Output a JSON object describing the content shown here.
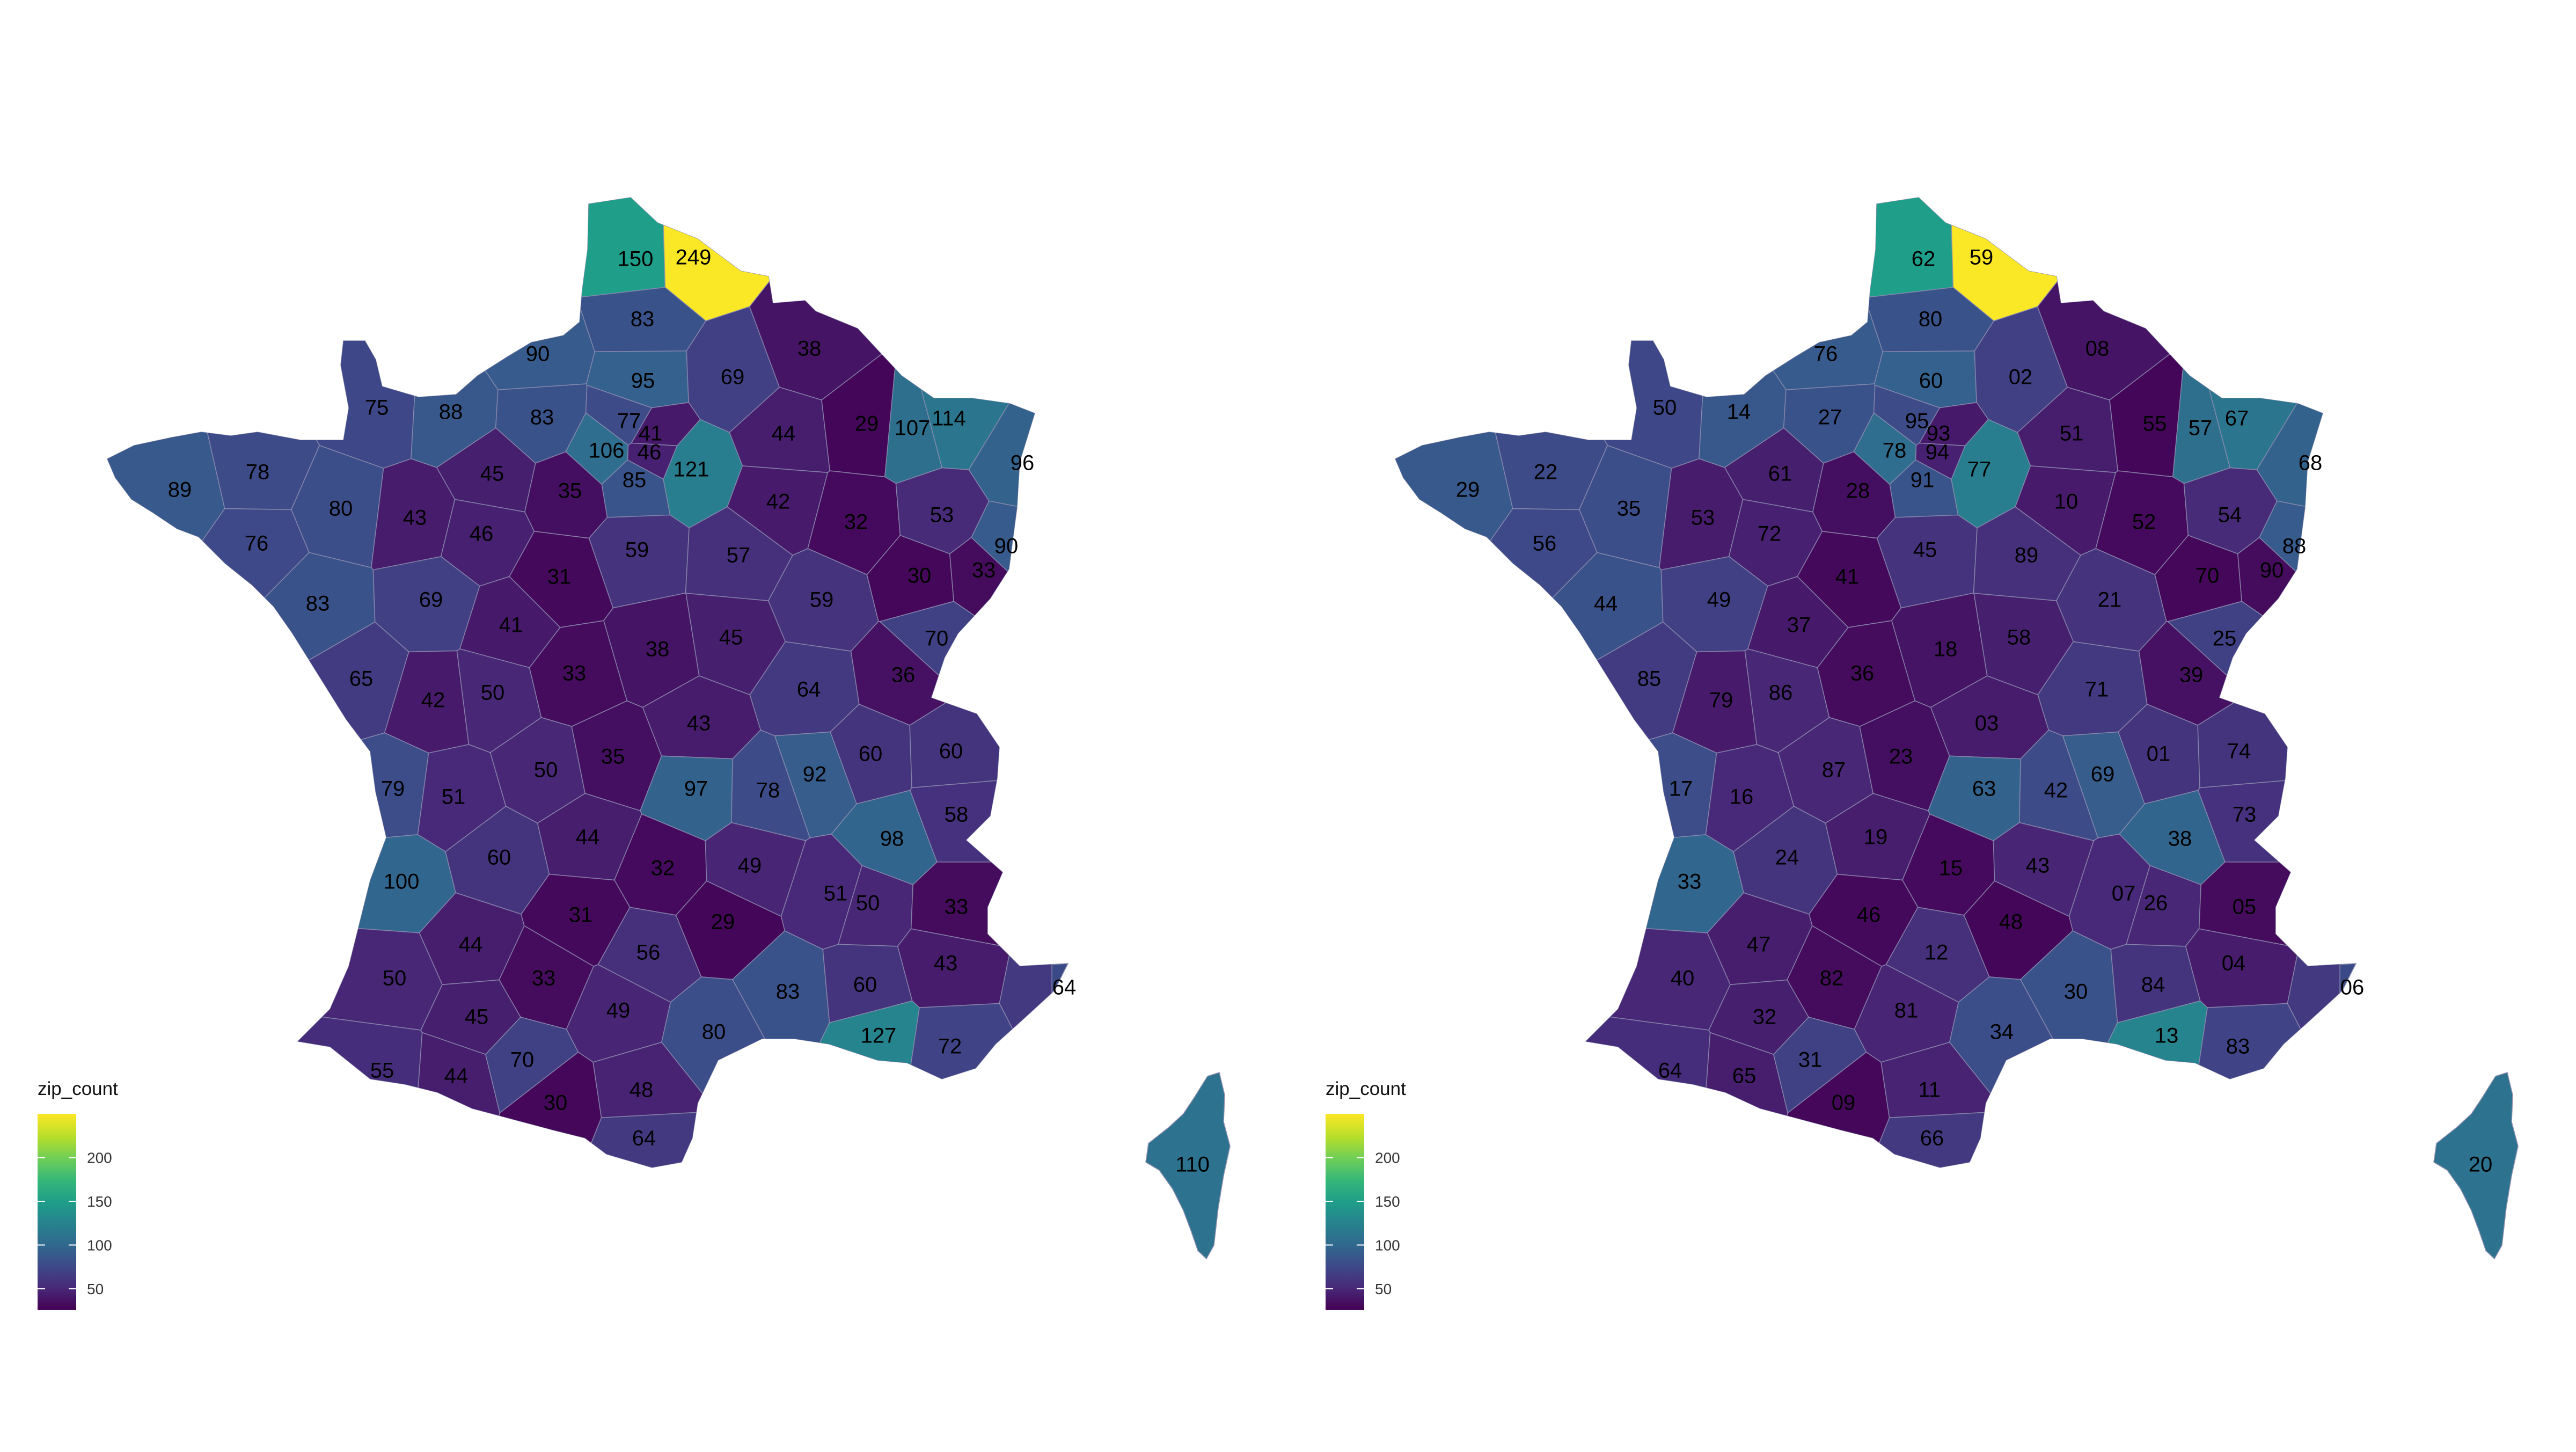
{
  "palette": [
    "#440154",
    "#482878",
    "#3e4989",
    "#31688e",
    "#26828e",
    "#1f9e89",
    "#35b779",
    "#6ece58",
    "#b5de2b",
    "#fde725"
  ],
  "region_stroke": "#8f8fb0",
  "legend": {
    "title": "zip_count",
    "ticks": [
      50,
      100,
      150,
      200
    ],
    "tick_labels": [
      "50",
      "100",
      "150",
      "200"
    ],
    "range": [
      26,
      250
    ]
  },
  "maps": [
    {
      "regions": [
        {
          "code": "62",
          "label": "150",
          "value": 150
        },
        {
          "code": "59",
          "label": "249",
          "value": 249
        },
        {
          "code": "80",
          "label": "83",
          "value": 83
        },
        {
          "code": "76",
          "label": "90",
          "value": 90
        },
        {
          "code": "60",
          "label": "95",
          "value": 95
        },
        {
          "code": "02",
          "label": "69",
          "value": 69
        },
        {
          "code": "08",
          "label": "38",
          "value": 38
        },
        {
          "code": "50",
          "label": "75",
          "value": 75
        },
        {
          "code": "14",
          "label": "88",
          "value": 88
        },
        {
          "code": "27",
          "label": "83",
          "value": 83
        },
        {
          "code": "95",
          "label": "77",
          "value": 77
        },
        {
          "code": "78",
          "label": "106",
          "value": 106
        },
        {
          "code": "91",
          "label": "85",
          "value": 85
        },
        {
          "code": "77",
          "label": "121",
          "value": 121
        },
        {
          "code": "93",
          "label": "41",
          "value": 41
        },
        {
          "code": "94",
          "label": "46",
          "value": 46
        },
        {
          "code": "51",
          "label": "44",
          "value": 44
        },
        {
          "code": "55",
          "label": "29",
          "value": 29
        },
        {
          "code": "57",
          "label": "107",
          "value": 107
        },
        {
          "code": "67",
          "label": "114",
          "value": 114
        },
        {
          "code": "68",
          "label": "96",
          "value": 96
        },
        {
          "code": "29",
          "label": "89",
          "value": 89
        },
        {
          "code": "22",
          "label": "78",
          "value": 78
        },
        {
          "code": "35",
          "label": "80",
          "value": 80
        },
        {
          "code": "56",
          "label": "76",
          "value": 76
        },
        {
          "code": "61",
          "label": "45",
          "value": 45
        },
        {
          "code": "53",
          "label": "43",
          "value": 43
        },
        {
          "code": "72",
          "label": "46",
          "value": 46
        },
        {
          "code": "28",
          "label": "35",
          "value": 35
        },
        {
          "code": "10",
          "label": "42",
          "value": 42
        },
        {
          "code": "52",
          "label": "32",
          "value": 32
        },
        {
          "code": "54",
          "label": "53",
          "value": 53
        },
        {
          "code": "88",
          "label": "90",
          "value": 90
        },
        {
          "code": "45",
          "label": "59",
          "value": 59
        },
        {
          "code": "89",
          "label": "57",
          "value": 57
        },
        {
          "code": "44",
          "label": "83",
          "value": 83
        },
        {
          "code": "49",
          "label": "69",
          "value": 69
        },
        {
          "code": "41",
          "label": "31",
          "value": 31
        },
        {
          "code": "21",
          "label": "59",
          "value": 59
        },
        {
          "code": "70",
          "label": "30",
          "value": 30
        },
        {
          "code": "90",
          "label": "33",
          "value": 33
        },
        {
          "code": "37",
          "label": "41",
          "value": 41
        },
        {
          "code": "18",
          "label": "38",
          "value": 38
        },
        {
          "code": "58",
          "label": "45",
          "value": 45
        },
        {
          "code": "25",
          "label": "70",
          "value": 70
        },
        {
          "code": "85",
          "label": "65",
          "value": 65
        },
        {
          "code": "79",
          "label": "42",
          "value": 42
        },
        {
          "code": "86",
          "label": "50",
          "value": 50
        },
        {
          "code": "36",
          "label": "33",
          "value": 33
        },
        {
          "code": "71",
          "label": "64",
          "value": 64
        },
        {
          "code": "39",
          "label": "36",
          "value": 36
        },
        {
          "code": "03",
          "label": "43",
          "value": 43
        },
        {
          "code": "17",
          "label": "79",
          "value": 79
        },
        {
          "code": "16",
          "label": "51",
          "value": 51
        },
        {
          "code": "87",
          "label": "50",
          "value": 50
        },
        {
          "code": "23",
          "label": "35",
          "value": 35
        },
        {
          "code": "63",
          "label": "97",
          "value": 97
        },
        {
          "code": "42",
          "label": "78",
          "value": 78
        },
        {
          "code": "69",
          "label": "92",
          "value": 92
        },
        {
          "code": "01",
          "label": "60",
          "value": 60
        },
        {
          "code": "74",
          "label": "60",
          "value": 60
        },
        {
          "code": "73",
          "label": "58",
          "value": 58
        },
        {
          "code": "38",
          "label": "98",
          "value": 98
        },
        {
          "code": "33",
          "label": "100",
          "value": 100
        },
        {
          "code": "24",
          "label": "60",
          "value": 60
        },
        {
          "code": "19",
          "label": "44",
          "value": 44
        },
        {
          "code": "15",
          "label": "32",
          "value": 32
        },
        {
          "code": "43",
          "label": "49",
          "value": 49
        },
        {
          "code": "07",
          "label": "51",
          "value": 51
        },
        {
          "code": "26",
          "label": "50",
          "value": 50
        },
        {
          "code": "05",
          "label": "33",
          "value": 33
        },
        {
          "code": "47",
          "label": "44",
          "value": 44
        },
        {
          "code": "46",
          "label": "31",
          "value": 31
        },
        {
          "code": "12",
          "label": "56",
          "value": 56
        },
        {
          "code": "48",
          "label": "29",
          "value": 29
        },
        {
          "code": "04",
          "label": "43",
          "value": 43
        },
        {
          "code": "06",
          "label": "64",
          "value": 64
        },
        {
          "code": "40",
          "label": "50",
          "value": 50
        },
        {
          "code": "82",
          "label": "33",
          "value": 33
        },
        {
          "code": "81",
          "label": "49",
          "value": 49
        },
        {
          "code": "30",
          "label": "83",
          "value": 83
        },
        {
          "code": "84",
          "label": "60",
          "value": 60
        },
        {
          "code": "13",
          "label": "127",
          "value": 127
        },
        {
          "code": "83",
          "label": "72",
          "value": 72
        },
        {
          "code": "34",
          "label": "80",
          "value": 80
        },
        {
          "code": "64",
          "label": "55",
          "value": 55
        },
        {
          "code": "32",
          "label": "45",
          "value": 45
        },
        {
          "code": "65",
          "label": "44",
          "value": 44
        },
        {
          "code": "31",
          "label": "70",
          "value": 70
        },
        {
          "code": "09",
          "label": "30",
          "value": 30
        },
        {
          "code": "11",
          "label": "48",
          "value": 48
        },
        {
          "code": "66",
          "label": "64",
          "value": 64
        },
        {
          "code": "2A",
          "label": "110",
          "value": 110
        }
      ]
    },
    {
      "regions": [
        {
          "code": "62",
          "label": "62",
          "value": 150
        },
        {
          "code": "59",
          "label": "59",
          "value": 249
        },
        {
          "code": "80",
          "label": "80",
          "value": 83
        },
        {
          "code": "76",
          "label": "76",
          "value": 90
        },
        {
          "code": "60",
          "label": "60",
          "value": 95
        },
        {
          "code": "02",
          "label": "02",
          "value": 69
        },
        {
          "code": "08",
          "label": "08",
          "value": 38
        },
        {
          "code": "50",
          "label": "50",
          "value": 75
        },
        {
          "code": "14",
          "label": "14",
          "value": 88
        },
        {
          "code": "27",
          "label": "27",
          "value": 83
        },
        {
          "code": "95",
          "label": "95",
          "value": 77
        },
        {
          "code": "78",
          "label": "78",
          "value": 106
        },
        {
          "code": "91",
          "label": "91",
          "value": 85
        },
        {
          "code": "77",
          "label": "77",
          "value": 121
        },
        {
          "code": "93",
          "label": "93",
          "value": 41
        },
        {
          "code": "94",
          "label": "94",
          "value": 46
        },
        {
          "code": "51",
          "label": "51",
          "value": 44
        },
        {
          "code": "55",
          "label": "55",
          "value": 29
        },
        {
          "code": "57",
          "label": "57",
          "value": 107
        },
        {
          "code": "67",
          "label": "67",
          "value": 114
        },
        {
          "code": "68",
          "label": "68",
          "value": 96
        },
        {
          "code": "29",
          "label": "29",
          "value": 89
        },
        {
          "code": "22",
          "label": "22",
          "value": 78
        },
        {
          "code": "35",
          "label": "35",
          "value": 80
        },
        {
          "code": "56",
          "label": "56",
          "value": 76
        },
        {
          "code": "61",
          "label": "61",
          "value": 45
        },
        {
          "code": "53",
          "label": "53",
          "value": 43
        },
        {
          "code": "72",
          "label": "72",
          "value": 46
        },
        {
          "code": "28",
          "label": "28",
          "value": 35
        },
        {
          "code": "10",
          "label": "10",
          "value": 42
        },
        {
          "code": "52",
          "label": "52",
          "value": 32
        },
        {
          "code": "54",
          "label": "54",
          "value": 53
        },
        {
          "code": "88",
          "label": "88",
          "value": 90
        },
        {
          "code": "45",
          "label": "45",
          "value": 59
        },
        {
          "code": "89",
          "label": "89",
          "value": 57
        },
        {
          "code": "44",
          "label": "44",
          "value": 83
        },
        {
          "code": "49",
          "label": "49",
          "value": 69
        },
        {
          "code": "41",
          "label": "41",
          "value": 31
        },
        {
          "code": "21",
          "label": "21",
          "value": 59
        },
        {
          "code": "70",
          "label": "70",
          "value": 30
        },
        {
          "code": "90",
          "label": "90",
          "value": 33
        },
        {
          "code": "37",
          "label": "37",
          "value": 41
        },
        {
          "code": "18",
          "label": "18",
          "value": 38
        },
        {
          "code": "58",
          "label": "58",
          "value": 45
        },
        {
          "code": "25",
          "label": "25",
          "value": 70
        },
        {
          "code": "85",
          "label": "85",
          "value": 65
        },
        {
          "code": "79",
          "label": "79",
          "value": 42
        },
        {
          "code": "86",
          "label": "86",
          "value": 50
        },
        {
          "code": "36",
          "label": "36",
          "value": 33
        },
        {
          "code": "71",
          "label": "71",
          "value": 64
        },
        {
          "code": "39",
          "label": "39",
          "value": 36
        },
        {
          "code": "03",
          "label": "03",
          "value": 43
        },
        {
          "code": "17",
          "label": "17",
          "value": 79
        },
        {
          "code": "16",
          "label": "16",
          "value": 51
        },
        {
          "code": "87",
          "label": "87",
          "value": 50
        },
        {
          "code": "23",
          "label": "23",
          "value": 35
        },
        {
          "code": "63",
          "label": "63",
          "value": 97
        },
        {
          "code": "42",
          "label": "42",
          "value": 78
        },
        {
          "code": "69",
          "label": "69",
          "value": 92
        },
        {
          "code": "01",
          "label": "01",
          "value": 60
        },
        {
          "code": "74",
          "label": "74",
          "value": 60
        },
        {
          "code": "73",
          "label": "73",
          "value": 58
        },
        {
          "code": "38",
          "label": "38",
          "value": 98
        },
        {
          "code": "33",
          "label": "33",
          "value": 100
        },
        {
          "code": "24",
          "label": "24",
          "value": 60
        },
        {
          "code": "19",
          "label": "19",
          "value": 44
        },
        {
          "code": "15",
          "label": "15",
          "value": 32
        },
        {
          "code": "43",
          "label": "43",
          "value": 49
        },
        {
          "code": "07",
          "label": "07",
          "value": 51
        },
        {
          "code": "26",
          "label": "26",
          "value": 50
        },
        {
          "code": "05",
          "label": "05",
          "value": 33
        },
        {
          "code": "47",
          "label": "47",
          "value": 44
        },
        {
          "code": "46",
          "label": "46",
          "value": 31
        },
        {
          "code": "12",
          "label": "12",
          "value": 56
        },
        {
          "code": "48",
          "label": "48",
          "value": 29
        },
        {
          "code": "04",
          "label": "04",
          "value": 43
        },
        {
          "code": "06",
          "label": "06",
          "value": 64
        },
        {
          "code": "40",
          "label": "40",
          "value": 50
        },
        {
          "code": "82",
          "label": "82",
          "value": 33
        },
        {
          "code": "81",
          "label": "81",
          "value": 49
        },
        {
          "code": "30",
          "label": "30",
          "value": 83
        },
        {
          "code": "84",
          "label": "84",
          "value": 60
        },
        {
          "code": "13",
          "label": "13",
          "value": 127
        },
        {
          "code": "83",
          "label": "83",
          "value": 72
        },
        {
          "code": "34",
          "label": "34",
          "value": 80
        },
        {
          "code": "64",
          "label": "64",
          "value": 55
        },
        {
          "code": "32",
          "label": "32",
          "value": 45
        },
        {
          "code": "65",
          "label": "65",
          "value": 44
        },
        {
          "code": "31",
          "label": "31",
          "value": 70
        },
        {
          "code": "09",
          "label": "09",
          "value": 30
        },
        {
          "code": "11",
          "label": "11",
          "value": 48
        },
        {
          "code": "66",
          "label": "66",
          "value": 64
        },
        {
          "code": "2A",
          "label": "20",
          "value": 110
        }
      ]
    }
  ]
}
